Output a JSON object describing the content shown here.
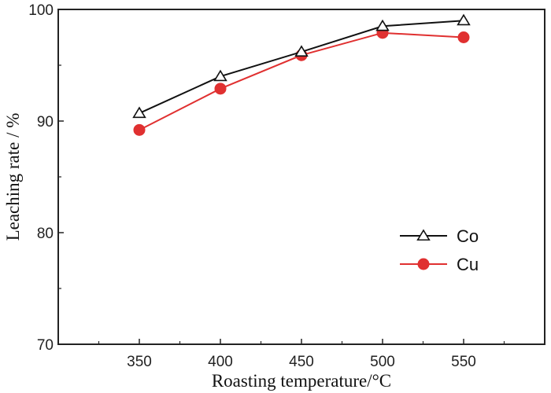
{
  "chart_data": {
    "type": "line",
    "title": "",
    "xlabel": "Roasting temperature/°C",
    "ylabel": "Leaching rate / %",
    "x": [
      350,
      400,
      450,
      500,
      550
    ],
    "xlim": [
      300,
      600
    ],
    "ylim": [
      70,
      100
    ],
    "x_ticks": [
      350,
      400,
      450,
      500,
      550
    ],
    "y_ticks": [
      70,
      80,
      90,
      100
    ],
    "grid": false,
    "legend_position": "right",
    "series": [
      {
        "name": "Co",
        "values": [
          90.7,
          94.0,
          96.2,
          98.5,
          99.0
        ],
        "color": "#111111",
        "marker": "open-triangle"
      },
      {
        "name": "Cu",
        "values": [
          89.2,
          92.9,
          95.9,
          97.9,
          97.5
        ],
        "color": "#e03030",
        "marker": "filled-circle"
      }
    ]
  }
}
